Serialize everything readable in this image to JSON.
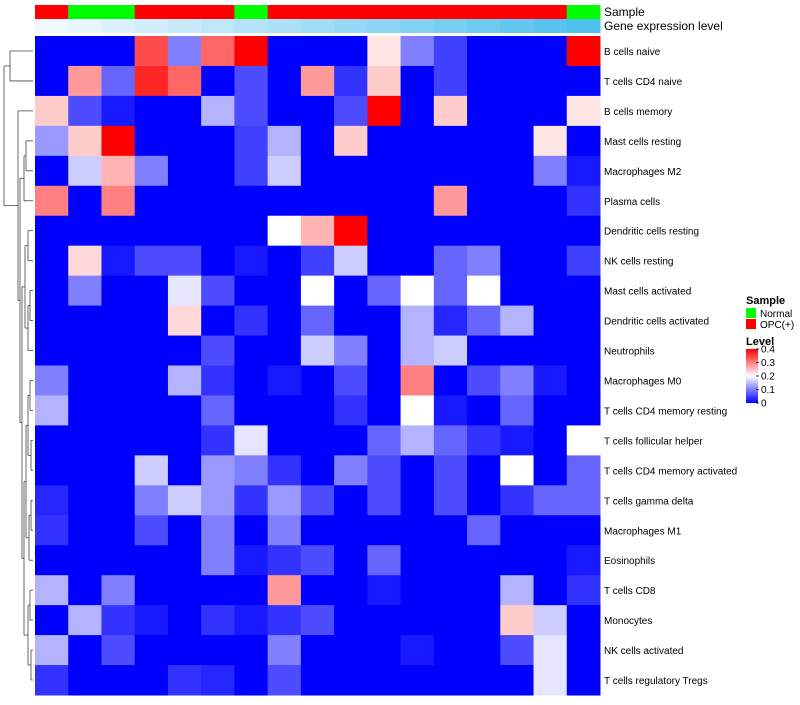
{
  "chart_data": {
    "type": "heatmap",
    "annotation_labels": [
      "Sample",
      "Gene expression level"
    ],
    "columns_sample": [
      "OPC(+)",
      "Normal",
      "Normal",
      "OPC(+)",
      "OPC(+)",
      "OPC(+)",
      "Normal",
      "OPC(+)",
      "OPC(+)",
      "OPC(+)",
      "OPC(+)",
      "OPC(+)",
      "OPC(+)",
      "OPC(+)",
      "OPC(+)",
      "OPC(+)",
      "Normal"
    ],
    "columns_expression_level": [
      0.02,
      0.04,
      0.06,
      0.08,
      0.1,
      0.12,
      0.14,
      0.16,
      0.18,
      0.2,
      0.22,
      0.24,
      0.26,
      0.28,
      0.3,
      0.32,
      0.34
    ],
    "rows": [
      "B cells naive",
      "T cells CD4 naive",
      "B cells memory",
      "Mast cells resting",
      "Macrophages M2",
      "Plasma cells",
      "Dendritic cells resting",
      "NK cells resting",
      "Mast cells activated",
      "Dendritic cells activated",
      "Neutrophils",
      "Macrophages M0",
      "T cells CD4 memory resting",
      "T cells follicular helper",
      "T cells CD4 memory activated",
      "T cells gamma delta",
      "Macrophages M1",
      "Eosinophils",
      "T cells CD8",
      "Monocytes",
      "NK cells activated",
      "T cells regulatory  Tregs"
    ],
    "values": [
      [
        0,
        0,
        0,
        0.34,
        0.1,
        0.32,
        0.4,
        0,
        0,
        0,
        0.22,
        0.1,
        0.05,
        0,
        0,
        0,
        0.4
      ],
      [
        0,
        0.28,
        0.08,
        0.37,
        0.32,
        0,
        0.06,
        0,
        0.28,
        0.04,
        0.24,
        0,
        0.05,
        0,
        0,
        0,
        0
      ],
      [
        0.24,
        0.06,
        0.02,
        0,
        0,
        0.14,
        0.06,
        0,
        0,
        0.06,
        0.4,
        0,
        0.24,
        0,
        0,
        0,
        0.22
      ],
      [
        0.12,
        0.24,
        0.4,
        0,
        0,
        0,
        0.05,
        0.14,
        0,
        0.24,
        0,
        0,
        0,
        0,
        0,
        0.22,
        0
      ],
      [
        0,
        0.16,
        0.26,
        0.1,
        0,
        0,
        0.05,
        0.16,
        0,
        0,
        0,
        0,
        0,
        0,
        0,
        0.1,
        0.02
      ],
      [
        0.3,
        0,
        0.3,
        0,
        0,
        0,
        0,
        0,
        0,
        0,
        0,
        0,
        0.28,
        0,
        0,
        0,
        0.04
      ],
      [
        0,
        0,
        0,
        0,
        0,
        0,
        0,
        0.2,
        0.26,
        0.4,
        0,
        0,
        0,
        0,
        0,
        0,
        0
      ],
      [
        0,
        0.23,
        0.02,
        0.06,
        0.06,
        0,
        0.02,
        0,
        0.05,
        0.16,
        0,
        0,
        0.08,
        0.1,
        0,
        0,
        0.05
      ],
      [
        0,
        0.1,
        0,
        0,
        0.18,
        0.06,
        0,
        0,
        0.2,
        0,
        0.08,
        0.2,
        0.08,
        0.2,
        0,
        0,
        0
      ],
      [
        0,
        0,
        0,
        0,
        0.23,
        0,
        0.04,
        0,
        0.08,
        0,
        0,
        0.14,
        0.03,
        0.08,
        0.14,
        0,
        0
      ],
      [
        0,
        0,
        0,
        0,
        0,
        0.06,
        0,
        0,
        0.16,
        0.1,
        0,
        0.14,
        0.16,
        0,
        0,
        0,
        0
      ],
      [
        0.1,
        0,
        0,
        0,
        0.14,
        0.04,
        0,
        0.02,
        0,
        0.06,
        0,
        0.3,
        0,
        0.06,
        0.1,
        0.02,
        0
      ],
      [
        0.14,
        0,
        0,
        0,
        0,
        0.08,
        0,
        0,
        0,
        0.04,
        0,
        0.2,
        0.02,
        0,
        0.08,
        0,
        0
      ],
      [
        0,
        0,
        0,
        0,
        0,
        0.04,
        0.18,
        0,
        0,
        0,
        0.08,
        0.14,
        0.08,
        0.04,
        0.02,
        0,
        0.2
      ],
      [
        0,
        0,
        0,
        0.16,
        0,
        0.12,
        0.1,
        0.04,
        0,
        0.1,
        0.06,
        0,
        0.06,
        0,
        0.2,
        0,
        0.08
      ],
      [
        0.03,
        0,
        0,
        0.1,
        0.16,
        0.12,
        0.04,
        0.12,
        0.06,
        0,
        0.06,
        0,
        0.06,
        0,
        0.04,
        0.08,
        0.08
      ],
      [
        0.04,
        0,
        0,
        0.06,
        0,
        0.1,
        0,
        0.1,
        0,
        0,
        0,
        0,
        0,
        0.08,
        0,
        0,
        0
      ],
      [
        0,
        0,
        0,
        0,
        0,
        0.1,
        0.02,
        0.04,
        0.06,
        0,
        0.08,
        0,
        0,
        0,
        0,
        0,
        0.02
      ],
      [
        0.14,
        0,
        0.1,
        0,
        0,
        0,
        0,
        0.28,
        0,
        0,
        0.02,
        0,
        0,
        0,
        0.14,
        0,
        0.04
      ],
      [
        0,
        0.14,
        0.04,
        0.02,
        0,
        0.04,
        0.02,
        0.04,
        0.06,
        0,
        0,
        0,
        0,
        0,
        0.24,
        0.16,
        0
      ],
      [
        0.14,
        0,
        0.06,
        0,
        0,
        0,
        0,
        0.1,
        0,
        0,
        0,
        0.02,
        0,
        0,
        0.06,
        0.18,
        0
      ],
      [
        0.04,
        0,
        0,
        0,
        0.04,
        0.03,
        0,
        0.06,
        0,
        0,
        0,
        0,
        0,
        0,
        0,
        0.18,
        0
      ]
    ],
    "legend": {
      "sample_title": "Sample",
      "sample_entries": [
        {
          "label": "Normal",
          "color": "#00ff00"
        },
        {
          "label": "OPC(+)",
          "color": "#ff0000"
        }
      ],
      "level_title": "Level",
      "level_ticks": [
        "0.4",
        "0.3",
        "0.2",
        "0.1",
        "0"
      ],
      "level_tick_values": [
        0.4,
        0.3,
        0.2,
        0.1,
        0
      ],
      "placement": "right"
    },
    "color_scale": {
      "low": "#0000ff",
      "mid": "#ffffff",
      "high": "#ff0000",
      "min": 0,
      "max": 0.4
    },
    "annotation_colors": {
      "Normal": "#00ff00",
      "OPC(+)": "#ff0000",
      "expression_low": "#f0f8ff",
      "expression_high": "#4fc1ef"
    },
    "dendrogram": "rows"
  }
}
